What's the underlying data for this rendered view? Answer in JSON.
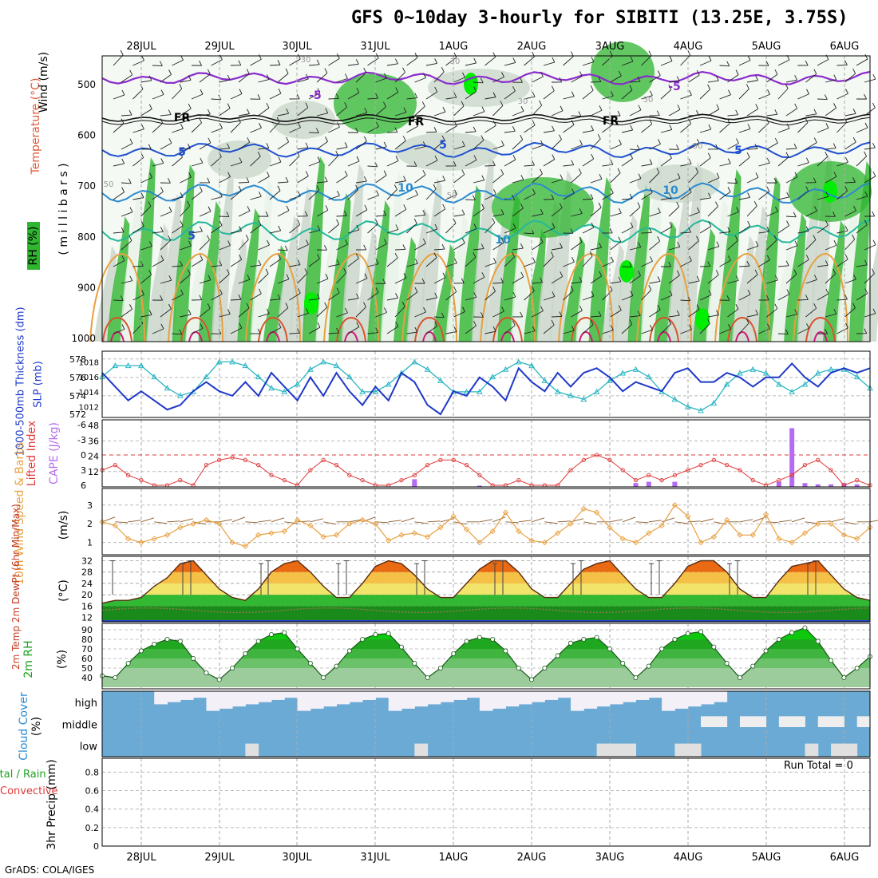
{
  "title": "GFS 0~10day 3-hourly for SIBITI (13.25E, 3.75S)",
  "footer": "GrADS: COLA/IGES",
  "colors": {
    "wet": "#2fb52f",
    "bright": "#00ee00",
    "lightgray": "#c9d5c9",
    "pale": "#e8f2e8",
    "blue": "#6aaad4",
    "purple": "#b56cf2",
    "cyan": "#2ab6c2",
    "navy": "#1f38c8",
    "orange": "#e8a040",
    "red": "#e03a3a"
  },
  "time_axis": {
    "labels": [
      "28JUL",
      "29JUL",
      "30JUL",
      "31JUL",
      "1AUG",
      "2AUG",
      "3AUG",
      "4AUG",
      "5AUG",
      "6AUG"
    ]
  },
  "panels": {
    "cross_section": {
      "ylabel_parts": [
        "RH (%)",
        "Temperature (°C)",
        "Wind (m/s)"
      ],
      "ylabel_unit": "( m i l l i b a r s )",
      "levels": [
        "500",
        "600",
        "700",
        "800",
        "900",
        "1000"
      ],
      "contour_labels": [
        "-5",
        "FR",
        "5",
        "10",
        "5",
        "FR",
        "5",
        "10",
        "-5",
        "FR",
        "5",
        "10"
      ],
      "rh_labels": [
        "30",
        "30",
        "50",
        "30",
        "50",
        "50",
        "30"
      ]
    },
    "thickness": {
      "label_left": "1000-500mb Thickness (dm)",
      "label_right": "SLP (mb)",
      "left_ticks": [
        "578",
        "576",
        "574",
        "572"
      ],
      "right_ticks": [
        "1018",
        "1016",
        "1014",
        "1012"
      ]
    },
    "cape": {
      "label_left": "Lifted Index",
      "label_right": "CAPE (J/kg)",
      "left_ticks": [
        "-6",
        "-3",
        "0",
        "3",
        "6"
      ],
      "right_ticks": [
        "48",
        "36",
        "24",
        "12"
      ]
    },
    "wind10m": {
      "label": "10m Wind Speed & Barbs",
      "unit": "(m/s)",
      "ticks": [
        "3",
        "2",
        "1"
      ]
    },
    "temp2m": {
      "label": "2m Temp 2m DewPt (6hr Min/Max)",
      "unit": "(°C)",
      "ticks": [
        "32",
        "28",
        "24",
        "20",
        "16",
        "12"
      ]
    },
    "rh2m": {
      "label": "2m RH",
      "unit": "(%)",
      "ticks": [
        "90",
        "80",
        "70",
        "60",
        "50",
        "40"
      ]
    },
    "cloud": {
      "label": "Cloud Cover",
      "unit": "(%)",
      "rows": [
        "high",
        "middle",
        "low"
      ]
    },
    "precip": {
      "label_total": "Total / Rain",
      "label_conv": "Convective",
      "ylabel": "3hr Precip (mm)",
      "ticks": [
        "0.8",
        "0.6",
        "0.4",
        "0.2",
        "0"
      ],
      "run_total": "Run Total = 0"
    }
  },
  "chart_data": [
    {
      "type": "line",
      "title": "1000-500mb Thickness (dm) / SLP (mb)",
      "series": [
        {
          "name": "1000-500mb Thickness (dm)",
          "values": [
            576.5,
            575,
            573.5,
            574.5,
            573.5,
            572.5,
            573,
            574.5,
            575.5,
            574.5,
            574,
            575.5,
            574,
            576.5,
            575,
            573.5,
            576,
            574,
            576.5,
            574.5,
            573,
            575,
            573.5,
            576.5,
            575.5,
            573,
            572,
            574.5,
            574,
            576,
            575,
            573.5,
            577,
            575.5,
            574.5,
            576.5,
            575,
            576.5,
            577,
            576,
            574.5,
            575.5,
            575,
            574.5,
            576.5,
            577,
            575.5,
            575.5,
            576.5,
            576,
            575,
            576,
            576,
            577.5,
            576,
            575,
            576.5,
            577,
            576.5,
            577
          ]
        },
        {
          "name": "SLP (mb)",
          "values": [
            1016,
            1017.5,
            1017.5,
            1017.5,
            1016,
            1014.5,
            1013.5,
            1014,
            1016,
            1018,
            1018,
            1017.5,
            1016,
            1014.5,
            1014,
            1015,
            1017,
            1018,
            1017.5,
            1016,
            1014,
            1014,
            1015,
            1016.5,
            1018,
            1017,
            1015.5,
            1014,
            1014,
            1014,
            1016,
            1017,
            1018,
            1017.5,
            1015.5,
            1014,
            1013.5,
            1013,
            1014,
            1015.5,
            1016.5,
            1017,
            1016,
            1014,
            1013,
            1012,
            1011.5,
            1012.5,
            1015,
            1016.5,
            1017,
            1016.5,
            1015,
            1014,
            1015,
            1016.5,
            1017,
            1017,
            1016,
            1014.5
          ]
        }
      ]
    },
    {
      "type": "bar",
      "title": "CAPE (J/kg)",
      "x": [
        24,
        29,
        24,
        44,
        41,
        42,
        44,
        52,
        53,
        54,
        55,
        56,
        57,
        58
      ],
      "values": [
        4,
        1,
        6,
        4,
        3,
        4,
        3,
        4,
        46,
        3,
        2,
        2,
        3,
        2
      ]
    },
    {
      "type": "line",
      "title": "Lifted Index",
      "values": [
        3,
        2,
        4,
        5,
        6,
        6,
        5,
        6,
        2,
        1,
        0.5,
        1,
        2,
        4,
        5,
        6,
        3,
        1,
        2,
        4,
        5,
        6,
        6,
        5,
        4,
        2,
        1,
        1,
        2,
        4,
        6,
        6,
        5,
        6,
        6,
        6,
        3,
        1,
        0,
        1,
        3,
        5,
        4,
        5,
        4,
        3,
        2,
        1,
        2,
        3,
        5,
        6,
        5,
        4,
        2,
        1,
        3,
        6,
        5,
        6
      ]
    },
    {
      "type": "line",
      "title": "10m Wind Speed",
      "values": [
        2.1,
        1.9,
        1.2,
        1.0,
        1.2,
        1.4,
        1.8,
        2.0,
        2.2,
        2.0,
        1.0,
        0.8,
        1.4,
        1.5,
        1.6,
        2.2,
        1.9,
        1.3,
        1.4,
        2.0,
        2.2,
        2.0,
        1.1,
        1.4,
        1.5,
        1.3,
        1.8,
        2.4,
        1.7,
        1.0,
        1.6,
        2.6,
        1.6,
        1.1,
        1.0,
        1.5,
        2.0,
        2.8,
        2.6,
        1.8,
        1.2,
        1.0,
        1.5,
        1.9,
        3.0,
        2.4,
        1.0,
        1.3,
        2.2,
        1.4,
        1.4,
        2.5,
        1.2,
        1.0,
        1.5,
        2.0,
        2.0,
        1.4,
        1.2,
        1.8
      ]
    },
    {
      "type": "area",
      "title": "2m Temp (°C)",
      "values": [
        17,
        18,
        18,
        19,
        23,
        26,
        31,
        32,
        27,
        22,
        19,
        18,
        22,
        28,
        31,
        32,
        28,
        23,
        19,
        19,
        24,
        30,
        32,
        31,
        27,
        22,
        19,
        19,
        24,
        29,
        32,
        32,
        28,
        22,
        19,
        19,
        24,
        29,
        31,
        32,
        27,
        22,
        19,
        19,
        24,
        30,
        32,
        32,
        28,
        22,
        19,
        19,
        25,
        30,
        31,
        32,
        27,
        22,
        19,
        18
      ]
    },
    {
      "type": "area",
      "title": "2m RH (%)",
      "values": [
        42,
        40,
        55,
        68,
        75,
        80,
        78,
        60,
        45,
        38,
        50,
        65,
        78,
        85,
        87,
        70,
        55,
        40,
        52,
        68,
        80,
        85,
        86,
        72,
        55,
        40,
        50,
        65,
        78,
        82,
        80,
        68,
        50,
        38,
        50,
        63,
        76,
        80,
        82,
        70,
        55,
        40,
        52,
        70,
        80,
        86,
        88,
        72,
        55,
        40,
        52,
        68,
        80,
        87,
        92,
        78,
        58,
        40,
        50,
        62
      ]
    },
    {
      "type": "bar",
      "title": "3hr Precip (mm)",
      "values": [
        0,
        0,
        0,
        0,
        0,
        0,
        0,
        0,
        0,
        0
      ]
    }
  ]
}
